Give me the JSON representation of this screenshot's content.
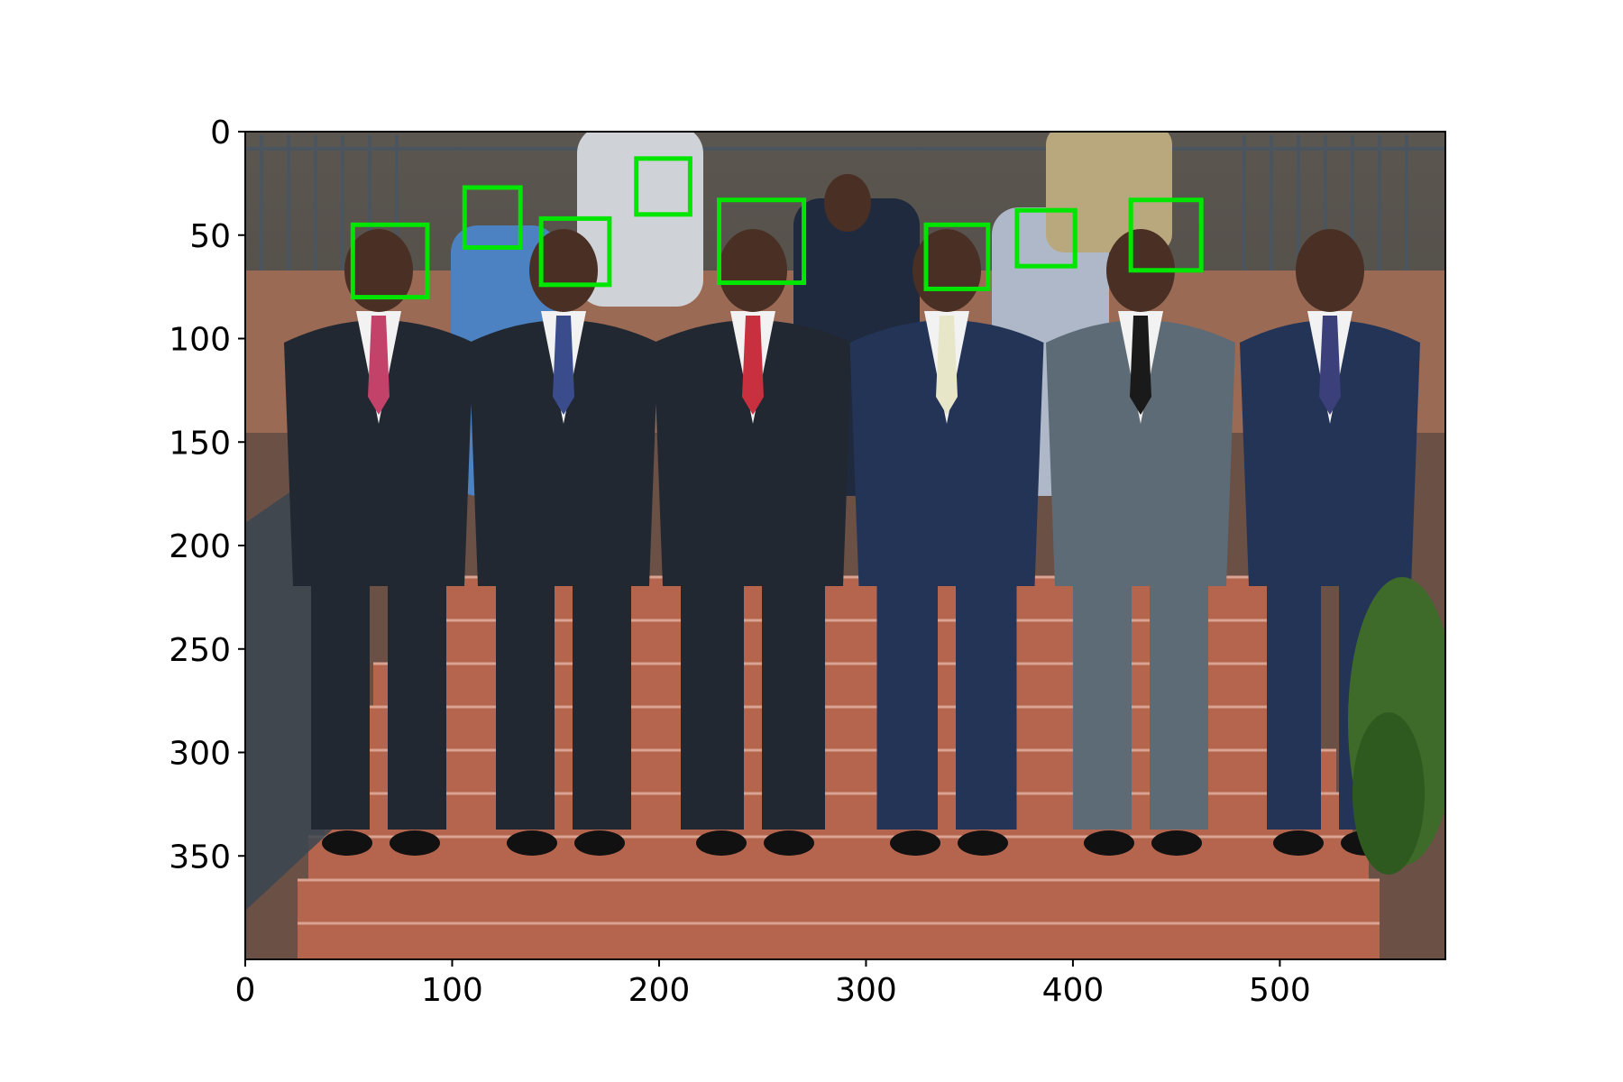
{
  "chart_data": {
    "type": "image",
    "x_range": [
      0,
      580
    ],
    "y_range": [
      0,
      400
    ],
    "y_inverted": true,
    "xticks": [
      0,
      100,
      200,
      300,
      400,
      500
    ],
    "yticks": [
      0,
      50,
      100,
      150,
      200,
      250,
      300,
      350
    ],
    "box_color": "#00e600",
    "detections": [
      {
        "x": 52,
        "y": 45,
        "w": 36,
        "h": 35
      },
      {
        "x": 106,
        "y": 27,
        "w": 27,
        "h": 29
      },
      {
        "x": 143,
        "y": 42,
        "w": 33,
        "h": 32
      },
      {
        "x": 189,
        "y": 13,
        "w": 26,
        "h": 27
      },
      {
        "x": 229,
        "y": 33,
        "w": 41,
        "h": 40
      },
      {
        "x": 329,
        "y": 45,
        "w": 30,
        "h": 31
      },
      {
        "x": 373,
        "y": 38,
        "w": 28,
        "h": 27
      },
      {
        "x": 428,
        "y": 33,
        "w": 34,
        "h": 34
      }
    ]
  },
  "colors": {
    "steps": "#b5654e",
    "step_line": "#d9a391",
    "railing": "#4a5560",
    "suit_dark": "#222831",
    "suit_navy": "#243457",
    "suit_grey": "#5d6b76",
    "skin": "#4a2f24"
  }
}
